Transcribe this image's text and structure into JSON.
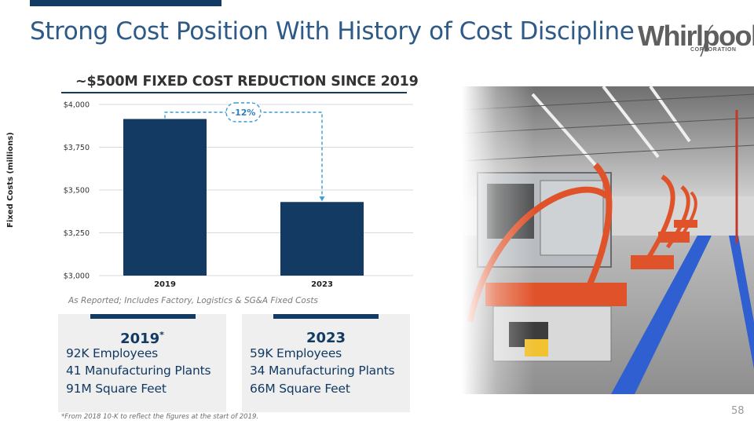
{
  "header": {
    "title": "Strong Cost Position With History of Cost Discipline",
    "logo_text": "Whirlpool",
    "logo_subtext": "CORPORATION"
  },
  "chart_section": {
    "subtitle": "~$500M FIXED COST REDUCTION SINCE 2019",
    "note": "As Reported; Includes Factory, Logistics & SG&A Fixed Costs"
  },
  "chart_data": {
    "type": "bar",
    "title": "~$500M FIXED COST REDUCTION SINCE 2019",
    "categories": [
      "2019",
      "2023"
    ],
    "values": [
      3915,
      3430
    ],
    "ylabel": "Fixed Costs (millions)",
    "xlabel": "",
    "ylim": [
      3000,
      4000
    ],
    "yticks": [
      3000,
      3250,
      3500,
      3750,
      4000
    ],
    "ytick_labels": [
      "$3,000",
      "$3,250",
      "$3,500",
      "$3,750",
      "$4,000"
    ],
    "grid": true,
    "annotation": "-12%",
    "bar_color": "#123a63"
  },
  "panels": [
    {
      "year": "2019",
      "marker": "*",
      "lines": [
        "92K Employees",
        "41 Manufacturing Plants",
        "91M Square Feet"
      ]
    },
    {
      "year": "2023",
      "marker": "",
      "lines": [
        "59K Employees",
        "34 Manufacturing Plants",
        "66M Square Feet"
      ]
    }
  ],
  "footer": {
    "footnote": "*From 2018 10-K to reflect the figures at the start of 2019.",
    "page_number": "58"
  },
  "colors": {
    "primary": "#123a63",
    "title": "#2e5a88",
    "accent_dashed": "#3a9bd5"
  }
}
